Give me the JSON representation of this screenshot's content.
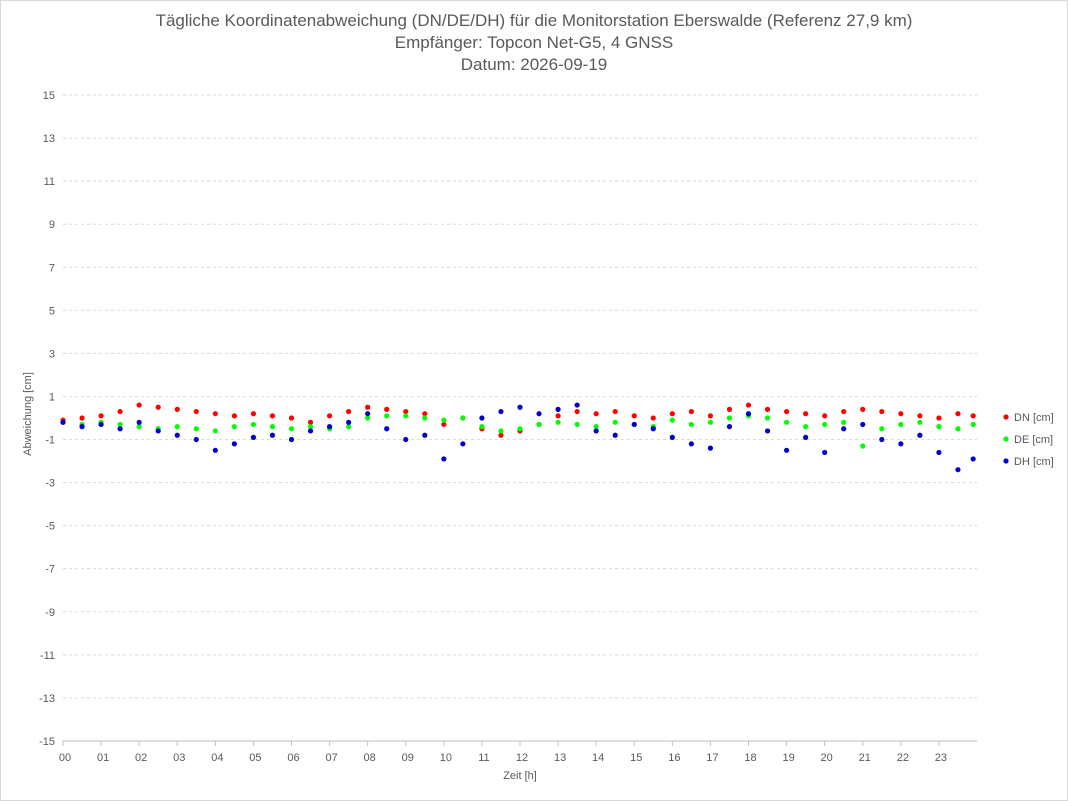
{
  "titles": {
    "line1": "Tägliche Koordinatenabweichung (DN/DE/DH) für die Monitorstation Eberswalde (Referenz 27,9 km)",
    "line2": "Empfänger: Topcon Net-G5, 4 GNSS",
    "line3": "Datum: 2026-09-19"
  },
  "chart_data": {
    "type": "scatter",
    "title": "Tägliche Koordinatenabweichung (DN/DE/DH) für die Monitorstation Eberswalde (Referenz 27,9 km)",
    "subtitle": [
      "Empfänger: Topcon Net-G5, 4 GNSS",
      "Datum: 2026-09-19"
    ],
    "xlabel": "Zeit [h]",
    "ylabel": "Abweichung [cm]",
    "xlim": [
      0,
      24
    ],
    "ylim": [
      -15,
      15
    ],
    "x_ticks": [
      "00",
      "01",
      "02",
      "03",
      "04",
      "05",
      "06",
      "07",
      "08",
      "09",
      "10",
      "11",
      "12",
      "13",
      "14",
      "15",
      "16",
      "17",
      "18",
      "19",
      "20",
      "21",
      "22",
      "23"
    ],
    "y_ticks": [
      "15",
      "13",
      "11",
      "9",
      "7",
      "5",
      "3",
      "1",
      "-1",
      "-3",
      "-5",
      "-7",
      "-9",
      "-11",
      "-13",
      "-15"
    ],
    "grid": "horizontal dashed",
    "legend_position": "right",
    "series": [
      {
        "name": "DN [cm]",
        "color": "#ff0000",
        "x": [
          0.0,
          0.5,
          1.0,
          1.5,
          2.0,
          2.5,
          3.0,
          3.5,
          4.0,
          4.5,
          5.0,
          5.5,
          6.0,
          6.5,
          7.0,
          7.5,
          8.0,
          8.5,
          9.0,
          9.5,
          10.0,
          10.5,
          11.0,
          11.5,
          12.0,
          12.5,
          13.0,
          13.5,
          14.0,
          14.5,
          15.0,
          15.5,
          16.0,
          16.5,
          17.0,
          17.5,
          18.0,
          18.5,
          19.0,
          19.5,
          20.0,
          20.5,
          21.0,
          21.5,
          22.0,
          22.5,
          23.0,
          23.5,
          23.9
        ],
        "y": [
          -0.1,
          0.0,
          0.1,
          0.3,
          0.6,
          0.5,
          0.4,
          0.3,
          0.2,
          0.1,
          0.2,
          0.1,
          0.0,
          -0.2,
          0.1,
          0.3,
          0.5,
          0.4,
          0.3,
          0.2,
          -0.3,
          0.0,
          -0.5,
          -0.8,
          -0.6,
          -0.3,
          0.1,
          0.3,
          0.2,
          0.3,
          0.1,
          0.0,
          0.2,
          0.3,
          0.1,
          0.4,
          0.6,
          0.4,
          0.3,
          0.2,
          0.1,
          0.3,
          0.4,
          0.3,
          0.2,
          0.1,
          0.0,
          0.2,
          0.1
        ]
      },
      {
        "name": "DE [cm]",
        "color": "#00ff00",
        "x": [
          0.0,
          0.5,
          1.0,
          1.5,
          2.0,
          2.5,
          3.0,
          3.5,
          4.0,
          4.5,
          5.0,
          5.5,
          6.0,
          6.5,
          7.0,
          7.5,
          8.0,
          8.5,
          9.0,
          9.5,
          10.0,
          10.5,
          11.0,
          11.5,
          12.0,
          12.5,
          13.0,
          13.5,
          14.0,
          14.5,
          15.0,
          15.5,
          16.0,
          16.5,
          17.0,
          17.5,
          18.0,
          18.5,
          19.0,
          19.5,
          20.0,
          20.5,
          21.0,
          21.5,
          22.0,
          22.5,
          23.0,
          23.5,
          23.9
        ],
        "y": [
          -0.2,
          -0.3,
          -0.2,
          -0.3,
          -0.4,
          -0.5,
          -0.4,
          -0.5,
          -0.6,
          -0.4,
          -0.3,
          -0.4,
          -0.5,
          -0.4,
          -0.5,
          -0.4,
          0.0,
          0.1,
          0.1,
          0.0,
          -0.1,
          0.0,
          -0.4,
          -0.6,
          -0.5,
          -0.3,
          -0.2,
          -0.3,
          -0.4,
          -0.2,
          -0.3,
          -0.4,
          -0.1,
          -0.3,
          -0.2,
          0.0,
          0.1,
          0.0,
          -0.2,
          -0.4,
          -0.3,
          -0.2,
          -1.3,
          -0.5,
          -0.3,
          -0.2,
          -0.4,
          -0.5,
          -0.3
        ]
      },
      {
        "name": "DH [cm]",
        "color": "#0000cc",
        "x": [
          0.0,
          0.5,
          1.0,
          1.5,
          2.0,
          2.5,
          3.0,
          3.5,
          4.0,
          4.5,
          5.0,
          5.5,
          6.0,
          6.5,
          7.0,
          7.5,
          8.0,
          8.5,
          9.0,
          9.5,
          10.0,
          10.5,
          11.0,
          11.5,
          12.0,
          12.5,
          13.0,
          13.5,
          14.0,
          14.5,
          15.0,
          15.5,
          16.0,
          16.5,
          17.0,
          17.5,
          18.0,
          18.5,
          19.0,
          19.5,
          20.0,
          20.5,
          21.0,
          21.5,
          22.0,
          22.5,
          23.0,
          23.5,
          23.9
        ],
        "y": [
          -0.2,
          -0.4,
          -0.3,
          -0.5,
          -0.2,
          -0.6,
          -0.8,
          -1.0,
          -1.5,
          -1.2,
          -0.9,
          -0.8,
          -1.0,
          -0.6,
          -0.4,
          -0.2,
          0.2,
          -0.5,
          -1.0,
          -0.8,
          -1.9,
          -1.2,
          0.0,
          0.3,
          0.5,
          0.2,
          0.4,
          0.6,
          -0.6,
          -0.8,
          -0.3,
          -0.5,
          -0.9,
          -1.2,
          -1.4,
          -0.4,
          0.2,
          -0.6,
          -1.5,
          -0.9,
          -1.6,
          -0.5,
          -0.3,
          -1.0,
          -1.2,
          -0.8,
          -1.6,
          -2.4,
          -1.9
        ]
      }
    ]
  }
}
